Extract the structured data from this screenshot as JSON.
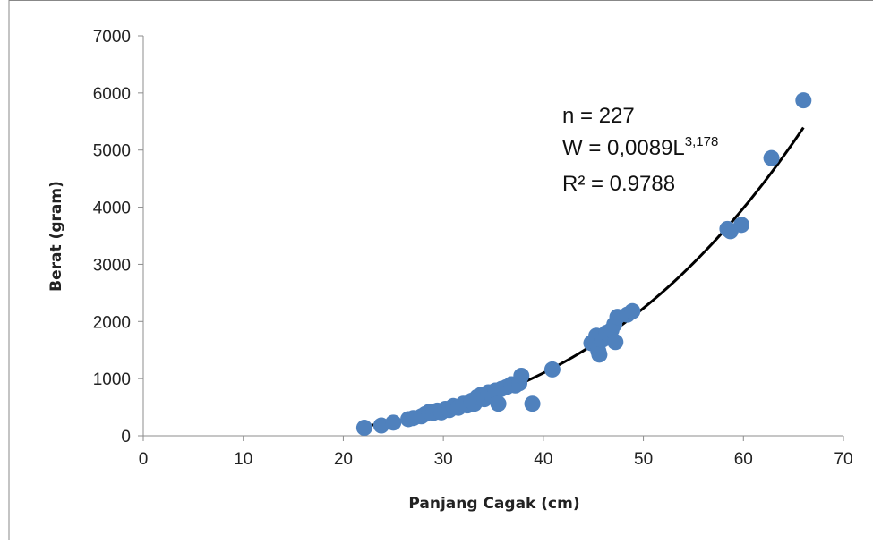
{
  "chart_data": {
    "type": "scatter",
    "title": "",
    "xlabel": "Panjang Cagak (cm)",
    "ylabel": "Berat (gram)",
    "xlim": [
      0,
      70
    ],
    "ylim": [
      0,
      7000
    ],
    "x_ticks": [
      0,
      10,
      20,
      30,
      40,
      50,
      60,
      70
    ],
    "y_ticks": [
      0,
      1000,
      2000,
      3000,
      4000,
      5000,
      6000,
      7000
    ],
    "grid": false,
    "legend": "none",
    "point_color": "#4f81bd",
    "trend_color": "#000000",
    "annotation": {
      "n_line": "n = 227",
      "eq_base": "W = 0,0089L",
      "eq_exponent": "3,178",
      "r2_line": "R² = 0.9788"
    },
    "trendline": {
      "a": 0.0089,
      "b": 3.178,
      "x_range": [
        22,
        66
      ]
    },
    "points": [
      [
        22.1,
        140
      ],
      [
        23.8,
        180
      ],
      [
        25.0,
        230
      ],
      [
        26.5,
        290
      ],
      [
        27.0,
        310
      ],
      [
        27.8,
        340
      ],
      [
        28.2,
        380
      ],
      [
        28.6,
        420
      ],
      [
        29.0,
        400
      ],
      [
        29.4,
        440
      ],
      [
        29.8,
        410
      ],
      [
        30.2,
        470
      ],
      [
        30.6,
        450
      ],
      [
        31.0,
        520
      ],
      [
        31.5,
        490
      ],
      [
        32.0,
        560
      ],
      [
        32.4,
        530
      ],
      [
        32.8,
        610
      ],
      [
        33.1,
        560
      ],
      [
        33.4,
        680
      ],
      [
        33.8,
        720
      ],
      [
        34.1,
        640
      ],
      [
        34.5,
        760
      ],
      [
        34.9,
        700
      ],
      [
        35.2,
        790
      ],
      [
        35.5,
        560
      ],
      [
        35.8,
        820
      ],
      [
        36.3,
        850
      ],
      [
        36.8,
        900
      ],
      [
        37.2,
        880
      ],
      [
        37.6,
        920
      ],
      [
        37.8,
        1050
      ],
      [
        38.9,
        560
      ],
      [
        40.9,
        1160
      ],
      [
        44.8,
        1620
      ],
      [
        45.3,
        1750
      ],
      [
        45.5,
        1480
      ],
      [
        45.6,
        1420
      ],
      [
        45.9,
        1680
      ],
      [
        46.3,
        1800
      ],
      [
        46.8,
        1850
      ],
      [
        47.1,
        1950
      ],
      [
        47.2,
        1640
      ],
      [
        47.4,
        2080
      ],
      [
        48.4,
        2120
      ],
      [
        48.9,
        2180
      ],
      [
        58.4,
        3620
      ],
      [
        58.7,
        3580
      ],
      [
        59.8,
        3690
      ],
      [
        62.8,
        4860
      ],
      [
        66.0,
        5870
      ]
    ]
  }
}
